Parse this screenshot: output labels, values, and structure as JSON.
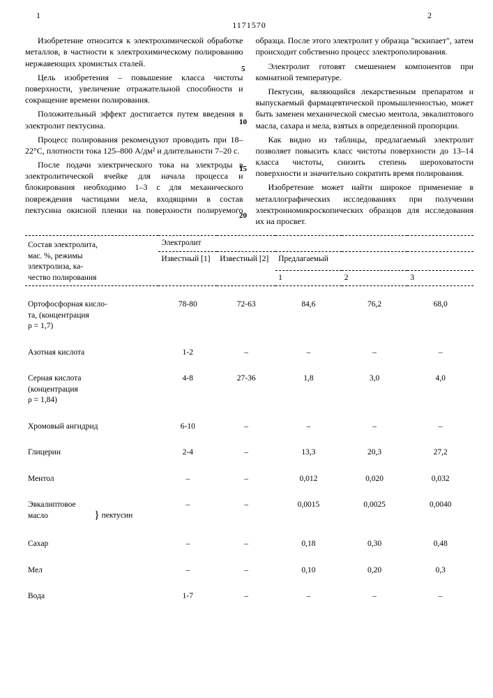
{
  "doc_number": "1171570",
  "page_left": "1",
  "page_right": "2",
  "gutter_numbers": [
    "5",
    "10",
    "15",
    "20"
  ],
  "paragraphs": [
    "Изобретение относится к электрохимической обработке металлов, в частности к электрохимическому полированию нержавеющих хромистых сталей.",
    "Цель изобретения – повышение класса чистоты поверхности, увеличение отражательной способности и сокращение времени полирования.",
    "Положительный эффект достигается путем введения в электролит пектусина.",
    "Процесс полирования рекомендуют проводить при 18–22°С, плотности тока 125–800 А/дм² и длительности 7–20 с.",
    "После подачи электрического тока на электроды в электролитической ячейке для начала процесса и блокирования необходимо 1–3 с для механического повреждения частицами мела, входящими в состав пектусина окисной пленки на поверхности полируемого образца. После этого электролит у образца \"вскипает\", затем происходит собственно процесс электрополирования.",
    "Электролит готовят смешением компонентов при комнатной температуре.",
    "Пектусин, являющийся лекарственным препаратом и выпускаемый фармацевтической промышленностью, может быть заменен механической смесью ментола, эвкалиптового масла, сахара и мела, взятых в определенной пропорции.",
    "Как видно из таблицы, предлагаемый электролит позволяет повысить класс чистоты поверхности до 13–14 класса чистоты, снизить степень шероховатости поверхности и значительно сократить время полирования.",
    "Изобретение может найти широкое применение в металлографических исследованиях при получении электронномикроскопических образцов для исследования их на просвет."
  ],
  "table": {
    "left_header_l1": "Состав электролита,",
    "left_header_l2": "мас. %, режимы",
    "left_header_l3": "электролиза, ка-",
    "left_header_l4": "чество полирования",
    "top_header": "Электролит",
    "col_known1": "Известный [1]",
    "col_known2": "Известный [2]",
    "col_proposed": "Предлагаемый",
    "sub1": "1",
    "sub2": "2",
    "sub3": "3",
    "rows": [
      {
        "label_l1": "Ортофосфорная кисло-",
        "label_l2": "та, (концентрация",
        "label_l3": "ρ = 1,7)",
        "c1": "78-80",
        "c2": "72-63",
        "c3": "84,6",
        "c4": "76,2",
        "c5": "68,0"
      },
      {
        "label_l1": "Азотная кислота",
        "c1": "1-2",
        "c2": "–",
        "c3": "–",
        "c4": "–",
        "c5": "–"
      },
      {
        "label_l1": "Серная кислота",
        "label_l2": "(концентрация",
        "label_l3": "ρ = 1,84)",
        "c1": "4-8",
        "c2": "27-36",
        "c3": "1,8",
        "c4": "3,0",
        "c5": "4,0"
      },
      {
        "label_l1": "Хромовый ангидрид",
        "c1": "6-10",
        "c2": "–",
        "c3": "–",
        "c4": "–",
        "c5": "–"
      },
      {
        "label_l1": "Глицерин",
        "c1": "2-4",
        "c2": "–",
        "c3": "13,3",
        "c4": "20,3",
        "c5": "27,2"
      },
      {
        "label_l1": "Ментол",
        "c1": "–",
        "c2": "–",
        "c3": "0,012",
        "c4": "0,020",
        "c5": "0,032",
        "group": true
      },
      {
        "label_l1": "Эвкалиптовое",
        "label_l2": "масло",
        "c1": "–",
        "c2": "–",
        "c3": "0,0015",
        "c4": "0,0025",
        "c5": "0,0040",
        "group": true,
        "brace_label": "пектусин"
      },
      {
        "label_l1": "Сахар",
        "c1": "–",
        "c2": "–",
        "c3": "0,18",
        "c4": "0,30",
        "c5": "0,48",
        "group": true
      },
      {
        "label_l1": "Мел",
        "c1": "–",
        "c2": "–",
        "c3": "0,10",
        "c4": "0,20",
        "c5": "0,3",
        "group": true
      },
      {
        "label_l1": "Вода",
        "c1": "1-7",
        "c2": "–",
        "c3": "–",
        "c4": "–",
        "c5": "–"
      }
    ]
  }
}
